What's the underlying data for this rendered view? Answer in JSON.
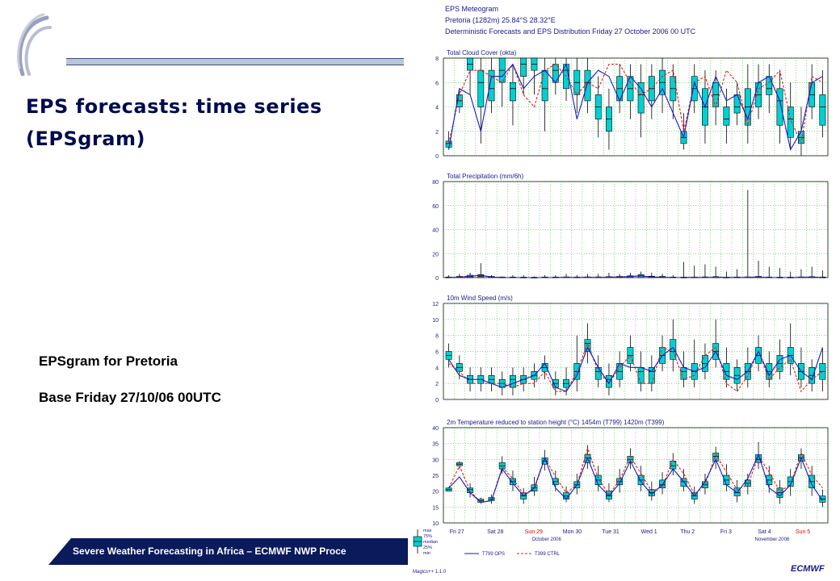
{
  "slide": {
    "title_line1": "EPS forecasts: time series",
    "title_line2": "(EPSgram)",
    "note_line1": "EPSgram for Pretoria",
    "note_line2": "Base Friday 27/10/06 00UTC",
    "footer": "Severe Weather Forecasting in Africa – ECMWF NWP Proce",
    "logo_icon": "ecmwf-swirl-logo",
    "colors": {
      "title": "#000b4f",
      "footer_bar": "#0a1a5a",
      "box": "#00d0d0",
      "ops_line": "#1a1ac8",
      "ctrl_line": "#e02020"
    }
  },
  "chart_data": {
    "type": "box",
    "header": {
      "line1": "EPS Meteogram",
      "line2": "Pretoria (1282m) 25.84°S 28.32°E",
      "line3": "Deterministic Forecasts and EPS Distribution Friday 27 October 2006 00 UTC"
    },
    "x_axis": {
      "day_labels": [
        "Fri 27",
        "Sat 28",
        "Sun 29",
        "Mon 30",
        "Tue 31",
        "Wed 1",
        "Thu 2",
        "Fri 3",
        "Sat 4",
        "Sun 5"
      ],
      "sunday_color": "#e00000",
      "month1": "October 2006",
      "month2": "November 2006"
    },
    "legend": {
      "box_labels": [
        "max",
        "75%",
        "median",
        "25%",
        "min"
      ],
      "ops": "T799 OPS",
      "ctrl": "T399 CTRL"
    },
    "brand": "ECMWF",
    "version": "Magics++ 1.1.0",
    "panels": [
      {
        "title": "Total Cloud Cover (okta)",
        "ylim": [
          0,
          8
        ],
        "yticks": [
          0,
          2,
          4,
          6,
          8
        ],
        "box_median": [
          1.0,
          4.5,
          7.5,
          6.0,
          5.5,
          7.0,
          5.5,
          7.5,
          7.5,
          5.5,
          7.0,
          7.0,
          6.0,
          6.0,
          4.0,
          3.0,
          5.5,
          5.5,
          5.0,
          5.5,
          6.0,
          5.5,
          1.5,
          5.5,
          4.0,
          5.0,
          3.0,
          4.0,
          4.0,
          5.0,
          5.5,
          4.5,
          3.0,
          1.5,
          5.0,
          4.0
        ],
        "box_q1": [
          0.7,
          4.0,
          7.0,
          4.0,
          4.5,
          6.0,
          4.5,
          6.5,
          7.0,
          4.5,
          6.0,
          5.5,
          5.0,
          4.5,
          3.0,
          2.0,
          4.5,
          4.5,
          3.5,
          4.5,
          5.0,
          4.5,
          1.0,
          4.5,
          2.5,
          4.0,
          2.5,
          3.5,
          2.5,
          4.0,
          5.0,
          2.5,
          1.5,
          1.0,
          4.0,
          2.5
        ],
        "box_q3": [
          1.2,
          5.0,
          8.0,
          7.0,
          7.0,
          8.0,
          6.0,
          8.0,
          8.0,
          7.0,
          7.5,
          7.5,
          7.0,
          7.0,
          5.0,
          4.0,
          6.5,
          6.5,
          6.0,
          6.5,
          7.0,
          6.5,
          2.0,
          6.5,
          5.5,
          6.0,
          4.0,
          5.0,
          5.5,
          6.0,
          6.5,
          5.5,
          4.0,
          2.0,
          6.0,
          5.0
        ],
        "box_min": [
          0.5,
          3.5,
          5.0,
          1.0,
          3.5,
          4.0,
          2.5,
          5.0,
          5.0,
          2.0,
          5.0,
          4.5,
          3.5,
          3.5,
          1.5,
          0.5,
          3.5,
          3.0,
          1.5,
          3.0,
          3.5,
          3.0,
          0.5,
          3.5,
          1.0,
          2.5,
          1.0,
          2.5,
          1.0,
          3.0,
          3.5,
          1.0,
          0.5,
          0.0,
          3.0,
          1.5
        ],
        "box_max": [
          2.0,
          5.5,
          8.0,
          8.0,
          8.0,
          8.0,
          7.5,
          8.0,
          8.0,
          8.0,
          8.0,
          8.0,
          8.0,
          8.0,
          6.5,
          5.5,
          7.5,
          7.5,
          7.5,
          7.5,
          8.0,
          7.5,
          3.5,
          7.5,
          7.0,
          7.0,
          5.5,
          6.0,
          7.5,
          7.5,
          7.5,
          7.0,
          6.0,
          4.0,
          7.5,
          7.0
        ],
        "ops": [
          0.5,
          5.5,
          5.0,
          2.0,
          6.5,
          6.5,
          7.5,
          5.5,
          6.5,
          7.0,
          6.0,
          7.5,
          3.0,
          6.0,
          7.0,
          6.5,
          4.5,
          6.5,
          5.5,
          4.0,
          5.5,
          3.5,
          1.5,
          6.0,
          4.0,
          6.5,
          4.5,
          5.0,
          3.0,
          6.0,
          6.5,
          4.5,
          0.5,
          2.0,
          6.0,
          6.5
        ],
        "ctrl": [
          1.0,
          5.0,
          7.0,
          7.0,
          6.5,
          6.0,
          7.5,
          5.0,
          4.0,
          7.0,
          7.5,
          6.5,
          5.0,
          6.0,
          5.5,
          7.5,
          7.5,
          6.0,
          5.0,
          5.5,
          6.5,
          7.0,
          2.0,
          6.0,
          6.5,
          4.0,
          7.0,
          6.0,
          2.5,
          5.5,
          6.0,
          7.0,
          3.0,
          1.0,
          6.5,
          6.0
        ]
      },
      {
        "title": "Total Precipitation (mm/6h)",
        "ylim": [
          0,
          80
        ],
        "yticks": [
          0,
          20,
          40,
          60,
          80
        ],
        "box_median": [
          0.3,
          0.5,
          0.8,
          1.0,
          0.5,
          0.2,
          0.2,
          0.2,
          0.1,
          0.2,
          0.2,
          0.3,
          0.2,
          0.3,
          0.3,
          0.4,
          0.5,
          0.8,
          1.5,
          0.6,
          0.5,
          0.2,
          0.2,
          0.2,
          0.3,
          0.4,
          0.2,
          0.2,
          0.3,
          0.5,
          0.2,
          0.2,
          0.2,
          0.3,
          0.4,
          0.2
        ],
        "box_q1": [
          0,
          0,
          0,
          0,
          0,
          0,
          0,
          0,
          0,
          0,
          0,
          0,
          0,
          0,
          0,
          0,
          0,
          0,
          0,
          0,
          0,
          0,
          0,
          0,
          0,
          0,
          0,
          0,
          0,
          0,
          0,
          0,
          0,
          0,
          0,
          0
        ],
        "box_q3": [
          0.5,
          1.0,
          2.0,
          2.5,
          1.0,
          0.5,
          0.5,
          0.4,
          0.3,
          0.5,
          0.5,
          0.6,
          0.5,
          0.6,
          0.6,
          0.8,
          1.0,
          1.5,
          2.5,
          1.2,
          1.0,
          0.5,
          0.4,
          0.5,
          0.6,
          0.8,
          0.4,
          0.5,
          0.6,
          1.0,
          0.5,
          0.4,
          0.4,
          0.6,
          0.8,
          0.5
        ],
        "box_min": [
          0,
          0,
          0,
          0,
          0,
          0,
          0,
          0,
          0,
          0,
          0,
          0,
          0,
          0,
          0,
          0,
          0,
          0,
          0,
          0,
          0,
          0,
          0,
          0,
          0,
          0,
          0,
          0,
          0,
          0,
          0,
          0,
          0,
          0,
          0,
          0
        ],
        "box_max": [
          2,
          3,
          4,
          12,
          2,
          1,
          2,
          2,
          1,
          2,
          2,
          3,
          2,
          3,
          3,
          4,
          3,
          4,
          5,
          4,
          3,
          2,
          13,
          10,
          11,
          9,
          5,
          7,
          73,
          14,
          9,
          8,
          5,
          7,
          9,
          6
        ],
        "ops": [
          0,
          0.3,
          1,
          2,
          0.5,
          0,
          0,
          0,
          0,
          0,
          0,
          0.2,
          0,
          0.3,
          0,
          0.5,
          0.3,
          1,
          1.5,
          0.5,
          0.3,
          0,
          0,
          0.2,
          0,
          0.3,
          0.2,
          0,
          0.2,
          0.5,
          0,
          0,
          0,
          0.2,
          0.5,
          0
        ],
        "ctrl": [
          0,
          0.5,
          1.5,
          1.5,
          0.5,
          0,
          0,
          0,
          0,
          0,
          0,
          0.2,
          0,
          0.3,
          0,
          0.5,
          0.5,
          1,
          1.2,
          0.5,
          0.3,
          0,
          0,
          0.2,
          0,
          0.3,
          0.2,
          0,
          0.3,
          0.5,
          0,
          0,
          0,
          0.2,
          0.4,
          0
        ]
      },
      {
        "title": "10m Wind Speed (m/s)",
        "ylim": [
          0,
          12
        ],
        "yticks": [
          0,
          2,
          4,
          6,
          8,
          10,
          12
        ],
        "box_median": [
          5.5,
          4.0,
          2.5,
          2.5,
          2.5,
          2.0,
          2.5,
          2.5,
          3.0,
          4.0,
          2.0,
          2.0,
          3.5,
          7.0,
          3.5,
          2.5,
          3.5,
          5.5,
          3.5,
          3.5,
          5.5,
          6.0,
          3.5,
          3.5,
          4.5,
          6.0,
          3.5,
          3.0,
          3.5,
          5.5,
          3.5,
          4.5,
          5.5,
          3.5,
          3.0,
          3.5
        ],
        "box_q1": [
          5.0,
          3.5,
          2.0,
          2.0,
          2.0,
          1.5,
          1.5,
          2.0,
          2.5,
          3.5,
          1.5,
          1.5,
          2.5,
          6.0,
          2.5,
          1.5,
          2.5,
          4.5,
          2.0,
          2.0,
          4.5,
          5.0,
          2.5,
          2.5,
          3.5,
          5.0,
          2.5,
          2.0,
          2.5,
          4.5,
          2.5,
          3.5,
          4.5,
          2.5,
          2.0,
          2.5
        ],
        "box_q3": [
          6.0,
          4.5,
          3.0,
          3.0,
          3.0,
          2.5,
          3.0,
          3.0,
          3.5,
          4.5,
          2.5,
          2.5,
          4.5,
          7.5,
          4.0,
          3.0,
          4.5,
          6.5,
          4.0,
          4.0,
          6.5,
          7.5,
          4.0,
          4.5,
          5.5,
          7.0,
          4.5,
          4.0,
          4.5,
          6.5,
          4.5,
          5.5,
          6.5,
          4.5,
          4.0,
          4.5
        ],
        "box_min": [
          4.0,
          2.5,
          1.0,
          1.0,
          1.0,
          0.5,
          0.5,
          1.0,
          1.5,
          2.5,
          0.5,
          0.5,
          1.0,
          4.5,
          1.5,
          0.5,
          1.5,
          3.5,
          1.0,
          1.0,
          3.5,
          3.5,
          1.5,
          1.5,
          2.5,
          4.0,
          1.5,
          1.0,
          1.5,
          3.5,
          1.5,
          2.5,
          3.0,
          1.5,
          1.0,
          1.0
        ],
        "box_max": [
          7.0,
          5.5,
          4.0,
          4.0,
          4.0,
          3.5,
          4.0,
          4.0,
          4.5,
          5.5,
          3.5,
          4.0,
          8.0,
          9.5,
          5.5,
          4.5,
          6.0,
          8.0,
          6.0,
          5.5,
          8.0,
          10.0,
          6.0,
          7.5,
          7.0,
          10.0,
          6.5,
          5.0,
          6.5,
          8.0,
          6.0,
          7.5,
          9.5,
          6.5,
          5.0,
          6.5
        ],
        "ops": [
          5.0,
          3.0,
          2.5,
          2.5,
          2.0,
          1.5,
          2.0,
          2.5,
          3.0,
          4.5,
          1.5,
          1.0,
          3.0,
          6.5,
          4.0,
          2.0,
          4.5,
          4.0,
          4.0,
          3.5,
          5.5,
          6.5,
          4.0,
          3.5,
          4.0,
          6.0,
          3.0,
          2.5,
          3.5,
          6.0,
          3.0,
          5.0,
          5.5,
          3.5,
          2.5,
          6.5
        ],
        "ctrl": [
          4.5,
          3.5,
          2.0,
          2.0,
          2.0,
          2.0,
          1.5,
          2.0,
          2.0,
          3.5,
          1.0,
          1.0,
          3.5,
          7.0,
          3.5,
          2.0,
          4.0,
          5.5,
          2.0,
          2.0,
          6.5,
          6.0,
          2.5,
          3.0,
          5.5,
          6.5,
          2.0,
          1.0,
          3.0,
          6.0,
          2.5,
          4.0,
          5.0,
          1.0,
          2.5,
          3.5
        ]
      },
      {
        "title": "2m Temperature reduced to station height (°C) 1454m (T799) 1420m (T399)",
        "ylim": [
          10,
          40
        ],
        "yticks": [
          10,
          15,
          20,
          25,
          30,
          35,
          40
        ],
        "box_median": [
          20.5,
          28.5,
          20.5,
          17.0,
          17.5,
          28.0,
          23.0,
          18.5,
          21.0,
          29.5,
          23.0,
          18.5,
          22.0,
          30.5,
          23.5,
          18.5,
          23.0,
          30.0,
          23.5,
          19.5,
          22.0,
          28.0,
          23.0,
          18.5,
          22.0,
          31.0,
          23.5,
          19.5,
          22.5,
          30.0,
          23.5,
          19.5,
          23.0,
          30.5,
          23.0,
          17.5
        ],
        "box_q1": [
          20.0,
          28.0,
          19.5,
          16.5,
          17.0,
          27.0,
          22.0,
          17.5,
          20.0,
          28.5,
          22.0,
          17.5,
          21.0,
          29.0,
          22.0,
          17.5,
          22.0,
          29.0,
          22.0,
          18.5,
          21.0,
          27.0,
          21.5,
          17.5,
          21.0,
          29.5,
          22.0,
          18.5,
          21.5,
          29.0,
          22.0,
          18.0,
          21.5,
          29.5,
          21.0,
          16.5
        ],
        "box_q3": [
          21.0,
          29.0,
          21.0,
          17.5,
          18.0,
          29.0,
          24.0,
          19.5,
          22.0,
          30.5,
          24.0,
          19.5,
          23.0,
          31.5,
          25.0,
          20.0,
          24.0,
          31.0,
          25.0,
          20.5,
          23.5,
          29.5,
          24.0,
          19.5,
          23.0,
          32.0,
          25.0,
          21.0,
          23.5,
          31.5,
          25.0,
          21.0,
          24.5,
          31.5,
          25.0,
          18.5
        ],
        "box_min": [
          20.0,
          27.0,
          18.0,
          16.0,
          16.0,
          25.5,
          20.0,
          16.0,
          18.5,
          26.5,
          20.0,
          16.5,
          19.0,
          27.0,
          20.0,
          16.5,
          19.5,
          27.0,
          20.0,
          17.0,
          19.0,
          25.0,
          20.0,
          16.0,
          19.0,
          27.0,
          20.0,
          16.5,
          19.0,
          27.0,
          19.5,
          16.0,
          18.5,
          27.0,
          18.5,
          15.0
        ],
        "box_max": [
          21.0,
          29.5,
          22.5,
          18.0,
          19.0,
          31.0,
          26.5,
          21.0,
          24.5,
          33.0,
          26.5,
          21.5,
          25.5,
          34.5,
          28.0,
          22.5,
          27.0,
          33.5,
          28.0,
          23.0,
          26.0,
          32.0,
          27.0,
          21.5,
          25.5,
          34.0,
          28.5,
          23.5,
          25.5,
          35.5,
          28.0,
          23.5,
          27.0,
          33.5,
          28.0,
          20.5
        ],
        "ops": [
          21.0,
          24.5,
          19.5,
          16.5,
          17.0,
          27.0,
          22.5,
          18.5,
          21.0,
          30.5,
          21.0,
          17.5,
          22.0,
          30.5,
          22.0,
          18.5,
          22.5,
          29.5,
          23.0,
          19.0,
          22.0,
          27.0,
          23.0,
          18.5,
          23.0,
          30.0,
          22.0,
          19.5,
          24.0,
          31.5,
          21.0,
          18.5,
          22.0,
          30.5,
          22.0,
          17.0
        ],
        "ctrl": [
          21.0,
          28.0,
          20.0,
          16.5,
          17.0,
          27.5,
          24.0,
          19.0,
          20.5,
          30.5,
          24.5,
          19.5,
          22.0,
          33.5,
          24.0,
          19.0,
          23.5,
          31.0,
          25.5,
          20.0,
          21.5,
          30.0,
          25.5,
          19.0,
          22.0,
          31.5,
          26.0,
          20.5,
          22.0,
          31.0,
          26.0,
          20.0,
          22.0,
          32.0,
          25.0,
          21.0
        ]
      }
    ]
  }
}
